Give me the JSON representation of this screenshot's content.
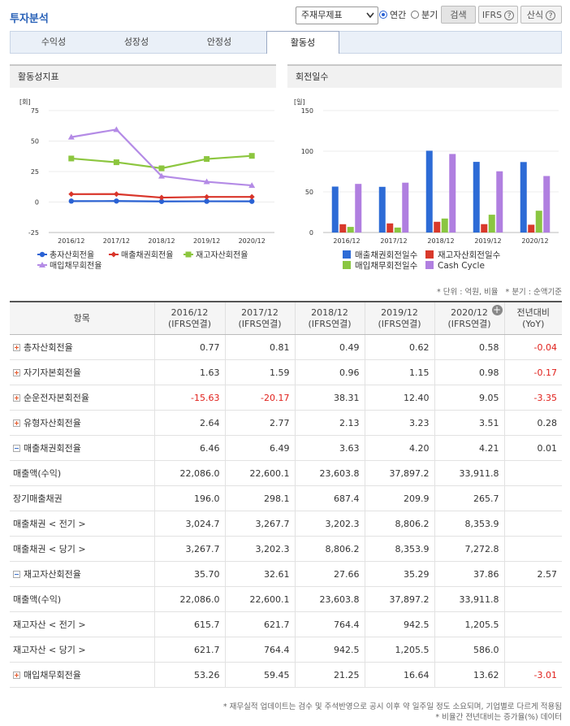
{
  "header": {
    "title": "투자분석",
    "select": "주재무제표",
    "radios": [
      "연간",
      "분기"
    ],
    "radio_checked": 0,
    "buttons": [
      "검색",
      "IFRS",
      "산식"
    ]
  },
  "tabs": [
    "수익성",
    "성장성",
    "안정성",
    "활동성"
  ],
  "active_tab": 3,
  "chart_data": [
    {
      "type": "line",
      "title": "활동성지표",
      "y_label": "[회]",
      "categories": [
        "2016/12",
        "2017/12",
        "2018/12",
        "2019/12",
        "2020/12"
      ],
      "ylim": [
        -25,
        75
      ],
      "yticks": [
        -25,
        0,
        25,
        50,
        75
      ],
      "grid": true,
      "series": [
        {
          "name": "총자산회전율",
          "color": "#2a62d4",
          "marker": "circle",
          "values": [
            0.77,
            0.81,
            0.49,
            0.62,
            0.58
          ]
        },
        {
          "name": "매출채권회전율",
          "color": "#d9352a",
          "marker": "diamond",
          "values": [
            6.46,
            6.49,
            3.63,
            4.2,
            4.21
          ]
        },
        {
          "name": "재고자산회전율",
          "color": "#8cc63f",
          "marker": "square",
          "values": [
            35.7,
            32.61,
            27.66,
            35.29,
            37.86
          ]
        },
        {
          "name": "매입채무회전율",
          "color": "#b48be6",
          "marker": "triangle",
          "values": [
            53.26,
            59.45,
            21.25,
            16.64,
            13.62
          ]
        }
      ]
    },
    {
      "type": "bar",
      "title": "회전일수",
      "y_label": "[일]",
      "categories": [
        "2016/12",
        "2017/12",
        "2018/12",
        "2019/12",
        "2020/12"
      ],
      "ylim": [
        0,
        150
      ],
      "yticks": [
        0,
        50,
        100,
        150
      ],
      "grid": true,
      "series": [
        {
          "name": "매출채권회전일수",
          "color": "#2d6bd6",
          "values": [
            56.5,
            56.2,
            100.6,
            86.9,
            86.7
          ]
        },
        {
          "name": "재고자산회전일수",
          "color": "#d8392b",
          "values": [
            10.2,
            11.2,
            13.2,
            10.3,
            9.6
          ]
        },
        {
          "name": "매입채무회전일수",
          "color": "#8ac641",
          "values": [
            6.9,
            6.1,
            17.2,
            21.9,
            26.8
          ]
        },
        {
          "name": "Cash Cycle",
          "color": "#b07fe0",
          "values": [
            59.8,
            61.3,
            96.6,
            75.3,
            69.5
          ]
        }
      ]
    }
  ],
  "notes": [
    "* 단위 : 억원, 비율",
    "* 분기 : 순액기준"
  ],
  "table": {
    "head": {
      "item": "항목",
      "periods": [
        {
          "period": "2016/12",
          "basis": "(IFRS연결)"
        },
        {
          "period": "2017/12",
          "basis": "(IFRS연결)"
        },
        {
          "period": "2018/12",
          "basis": "(IFRS연결)"
        },
        {
          "period": "2019/12",
          "basis": "(IFRS연결)"
        },
        {
          "period": "2020/12",
          "basis": "(IFRS연결)"
        }
      ],
      "yoy": {
        "label": "전년대비",
        "sub": "(YoY)"
      }
    },
    "rows": [
      {
        "label": "총자산회전율",
        "toggle": "plus",
        "values": [
          "0.77",
          "0.81",
          "0.49",
          "0.62",
          "0.58"
        ],
        "yoy": "-0.04"
      },
      {
        "label": "자기자본회전율",
        "toggle": "plus",
        "values": [
          "1.63",
          "1.59",
          "0.96",
          "1.15",
          "0.98"
        ],
        "yoy": "-0.17"
      },
      {
        "label": "순운전자본회전율",
        "toggle": "plus",
        "values": [
          "-15.63",
          "-20.17",
          "38.31",
          "12.40",
          "9.05"
        ],
        "yoy": "-3.35"
      },
      {
        "label": "유형자산회전율",
        "toggle": "plus",
        "values": [
          "2.64",
          "2.77",
          "2.13",
          "3.23",
          "3.51"
        ],
        "yoy": "0.28"
      },
      {
        "label": "매출채권회전율",
        "toggle": "minus",
        "values": [
          "6.46",
          "6.49",
          "3.63",
          "4.20",
          "4.21"
        ],
        "yoy": "0.01"
      },
      {
        "label": "매출액(수익)",
        "values": [
          "22,086.0",
          "22,600.1",
          "23,603.8",
          "37,897.2",
          "33,911.8"
        ]
      },
      {
        "label": "장기매출채권",
        "values": [
          "196.0",
          "298.1",
          "687.4",
          "209.9",
          "265.7"
        ]
      },
      {
        "label": "매출채권 < 전기 >",
        "values": [
          "3,024.7",
          "3,267.7",
          "3,202.3",
          "8,806.2",
          "8,353.9"
        ]
      },
      {
        "label": "매출채권 < 당기 >",
        "values": [
          "3,267.7",
          "3,202.3",
          "8,806.2",
          "8,353.9",
          "7,272.8"
        ]
      },
      {
        "label": "재고자산회전율",
        "toggle": "minus",
        "values": [
          "35.70",
          "32.61",
          "27.66",
          "35.29",
          "37.86"
        ],
        "yoy": "2.57"
      },
      {
        "label": "매출액(수익)",
        "values": [
          "22,086.0",
          "22,600.1",
          "23,603.8",
          "37,897.2",
          "33,911.8"
        ]
      },
      {
        "label": "재고자산 < 전기 >",
        "values": [
          "615.7",
          "621.7",
          "764.4",
          "942.5",
          "1,205.5"
        ]
      },
      {
        "label": "재고자산 < 당기 >",
        "values": [
          "621.7",
          "764.4",
          "942.5",
          "1,205.5",
          "586.0"
        ]
      },
      {
        "label": "매입채무회전율",
        "toggle": "plus",
        "values": [
          "53.26",
          "59.45",
          "21.25",
          "16.64",
          "13.62"
        ],
        "yoy": "-3.01"
      }
    ]
  },
  "footnotes": [
    "* 재무실적 업데이트는 검수 및 주석반영으로 공시 이후 약 일주일 정도 소요되며, 기업별로 다르게 적용됨",
    "* 비율간 전년대비는 증가율(%) 데이터"
  ]
}
